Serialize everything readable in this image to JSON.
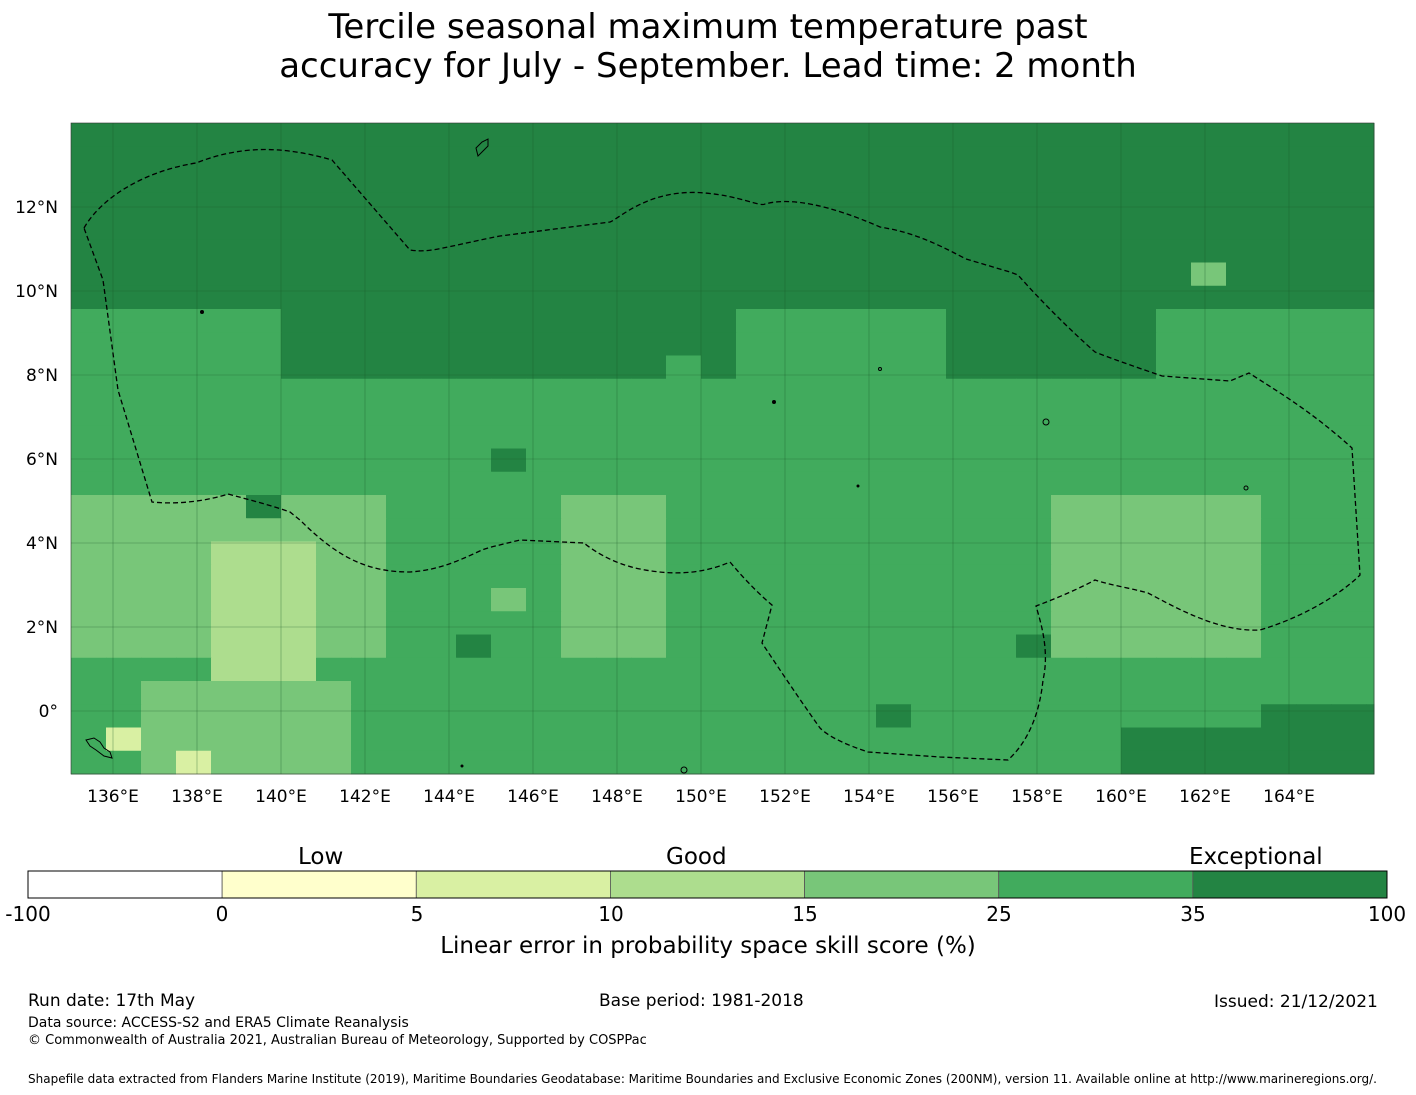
{
  "title_line1": "Tercile seasonal maximum temperature past",
  "title_line2": "accuracy for July - September. Lead time: 2 month",
  "map": {
    "lat_labels": [
      "12°N",
      "10°N",
      "8°N",
      "6°N",
      "4°N",
      "2°N",
      "0°"
    ],
    "lon_labels": [
      "136°E",
      "138°E",
      "140°E",
      "142°E",
      "144°E",
      "146°E",
      "148°E",
      "150°E",
      "152°E",
      "154°E",
      "156°E",
      "158°E",
      "160°E",
      "162°E",
      "164°E"
    ],
    "colors": [
      "#ffffff",
      "#ffffcc",
      "#d9f0a3",
      "#addd8e",
      "#78c679",
      "#41ab5d",
      "#238443"
    ],
    "boundary_style": "dashed"
  },
  "colorbar": {
    "category_labels": [
      "Low",
      "Good",
      "Exceptional"
    ],
    "ticks": [
      "-100",
      "0",
      "5",
      "10",
      "15",
      "25",
      "35",
      "100"
    ],
    "colors": [
      "#ffffff",
      "#ffffcc",
      "#d9f0a3",
      "#addd8e",
      "#78c679",
      "#41ab5d",
      "#238443"
    ],
    "xlabel": "Linear error in probability space skill score (%)"
  },
  "footer": {
    "run_date": "Run date: 17th May",
    "base_period": "Base period: 1981-2018",
    "issued": "Issued: 21/12/2021",
    "data_source": "Data source: ACCESS-S2 and ERA5 Climate Reanalysis",
    "copyright": "© Commonwealth of Australia 2021, Australian Bureau of Meteorology, Supported by COSPPac",
    "shapefile": "Shapefile data extracted from Flanders Marine Institute (2019), Maritime Boundaries Geodatabase: Maritime Boundaries and Exclusive Economic Zones (200NM), version 11. Available online at http://www.marineregions.org/."
  }
}
